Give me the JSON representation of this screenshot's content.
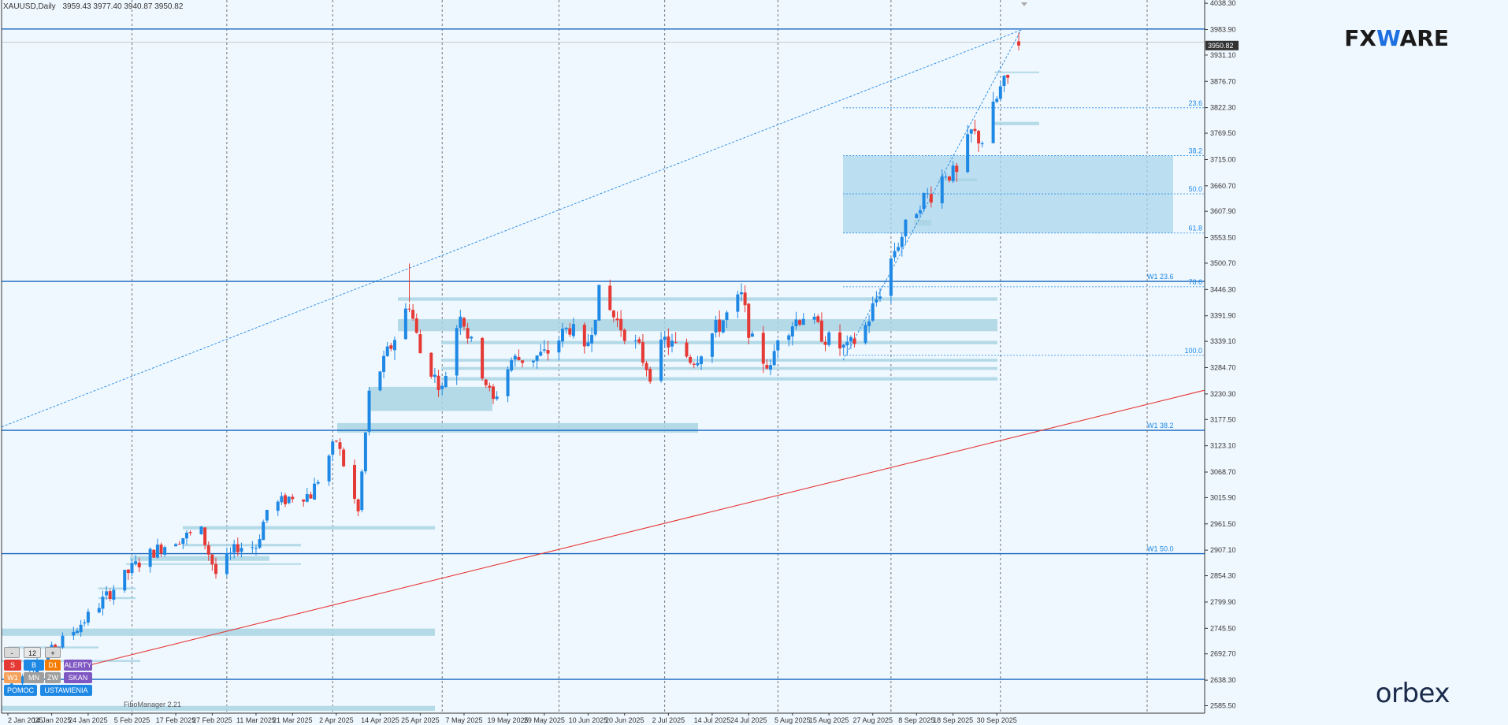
{
  "header": {
    "symbol": "XAUUSD,Daily",
    "ohlc": "3959.43 3977.40 3940.87 3950.82"
  },
  "brand": {
    "logo_text_left": "FX",
    "logo_text_mid": "W",
    "logo_text_right": "ARE",
    "footer_logo": "orbex"
  },
  "indicator_label": "FiboManager 2.21",
  "panel": {
    "minus": "-",
    "value": "12",
    "plus": "+",
    "buttons": [
      {
        "label": "S",
        "color": "#e53935"
      },
      {
        "label": "B",
        "color": "#1e88e5"
      },
      {
        "label": "D1",
        "color": "#f57c00"
      },
      {
        "label": "ALERTY",
        "color": "#7e57c2"
      },
      {
        "label": "W1",
        "color": "#f5a25d"
      },
      {
        "label": "MN",
        "color": "#9e9e9e"
      },
      {
        "label": "ZW",
        "color": "#9e9e9e"
      },
      {
        "label": "SKAN",
        "color": "#7e57c2"
      },
      {
        "label": "POMOC",
        "color": "#1e88e5"
      },
      {
        "label": "USTAWIENIA",
        "color": "#1e88e5"
      }
    ]
  },
  "chart_data": {
    "type": "candlestick",
    "symbol": "XAUUSD",
    "timeframe": "Daily",
    "y_ticks": [
      "4038.30",
      "3983.90",
      "3931.10",
      "3876.70",
      "3822.30",
      "3769.50",
      "3715.00",
      "3660.70",
      "3607.90",
      "3553.50",
      "3500.70",
      "3446.30",
      "3391.90",
      "3339.10",
      "3284.70",
      "3230.30",
      "3177.50",
      "3123.10",
      "3068.70",
      "3015.90",
      "2961.50",
      "2907.10",
      "2854.30",
      "2799.90",
      "2745.50",
      "2692.70",
      "2638.30",
      "2585.50"
    ],
    "ylim": [
      2570,
      4045
    ],
    "current_price": "3950.82",
    "x_ticks": [
      "2 Jan 2025",
      "14 Jan 2025",
      "24 Jan 2025",
      "5 Feb 2025",
      "17 Feb 2025",
      "27 Feb 2025",
      "11 Mar 2025",
      "21 Mar 2025",
      "2 Apr 2025",
      "14 Apr 2025",
      "25 Apr 2025",
      "7 May 2025",
      "19 May 2025",
      "29 May 2025",
      "10 Jun 2025",
      "20 Jun 2025",
      "2 Jul 2025",
      "14 Jul 2025",
      "24 Jul 2025",
      "5 Aug 2025",
      "15 Aug 2025",
      "27 Aug 2025",
      "8 Sep 2025",
      "18 Sep 2025",
      "30 Sep 2025"
    ],
    "horizontal_levels": [
      3985,
      3463,
      3155,
      2900,
      2640
    ],
    "fib_levels": [
      {
        "label": "23.6",
        "price": 3822
      },
      {
        "label": "38.2",
        "price": 3723
      },
      {
        "label": "50.0",
        "price": 3644
      },
      {
        "label": "61.8",
        "price": 3563
      },
      {
        "label": "78.6",
        "price": 3452
      },
      {
        "label": "100.0",
        "price": 3310
      }
    ],
    "weekly_labels": [
      {
        "label": "W1 23.6",
        "price": 3463
      },
      {
        "label": "W1 38.2",
        "price": 3155
      },
      {
        "label": "W1 50.0",
        "price": 2900
      }
    ],
    "anchors": [
      [
        "2025-01-02",
        2625
      ],
      [
        "2025-01-13",
        2690
      ],
      [
        "2025-01-24",
        2770
      ],
      [
        "2025-02-05",
        2870
      ],
      [
        "2025-02-11",
        2905
      ],
      [
        "2025-02-17",
        2930
      ],
      [
        "2025-02-24",
        2945
      ],
      [
        "2025-02-28",
        2858
      ],
      [
        "2025-03-06",
        2915
      ],
      [
        "2025-03-11",
        2915
      ],
      [
        "2025-03-14",
        2990
      ],
      [
        "2025-03-21",
        3020
      ],
      [
        "2025-03-26",
        3022
      ],
      [
        "2025-04-02",
        3135
      ],
      [
        "2025-04-08",
        2985
      ],
      [
        "2025-04-11",
        3230
      ],
      [
        "2025-04-17",
        3330
      ],
      [
        "2025-04-22",
        3420
      ],
      [
        "2025-04-25",
        3315
      ],
      [
        "2025-05-01",
        3240
      ],
      [
        "2025-05-06",
        3405
      ],
      [
        "2025-05-09",
        3330
      ],
      [
        "2025-05-15",
        3215
      ],
      [
        "2025-05-20",
        3300
      ],
      [
        "2025-05-29",
        3310
      ],
      [
        "2025-06-05",
        3370
      ],
      [
        "2025-06-09",
        3310
      ],
      [
        "2025-06-13",
        3435
      ],
      [
        "2025-06-17",
        3390
      ],
      [
        "2025-06-24",
        3320
      ],
      [
        "2025-06-27",
        3270
      ],
      [
        "2025-07-01",
        3340
      ],
      [
        "2025-07-09",
        3300
      ],
      [
        "2025-07-14",
        3355
      ],
      [
        "2025-07-22",
        3430
      ],
      [
        "2025-07-25",
        3335
      ],
      [
        "2025-07-30",
        3280
      ],
      [
        "2025-08-01",
        3355
      ],
      [
        "2025-08-08",
        3395
      ],
      [
        "2025-08-15",
        3340
      ],
      [
        "2025-08-20",
        3320
      ],
      [
        "2025-08-25",
        3370
      ],
      [
        "2025-08-29",
        3445
      ],
      [
        "2025-09-02",
        3530
      ],
      [
        "2025-09-09",
        3630
      ],
      [
        "2025-09-12",
        3645
      ],
      [
        "2025-09-16",
        3690
      ],
      [
        "2025-09-19",
        3680
      ],
      [
        "2025-09-23",
        3770
      ],
      [
        "2025-09-26",
        3755
      ],
      [
        "2025-10-01",
        3860
      ],
      [
        "2025-10-03",
        3880
      ],
      [
        "2025-10-06",
        3950
      ]
    ],
    "last_candle": {
      "date": "2025-10-06",
      "open": 3959.43,
      "high": 3977.4,
      "low": 3940.87,
      "close": 3950.82
    }
  }
}
